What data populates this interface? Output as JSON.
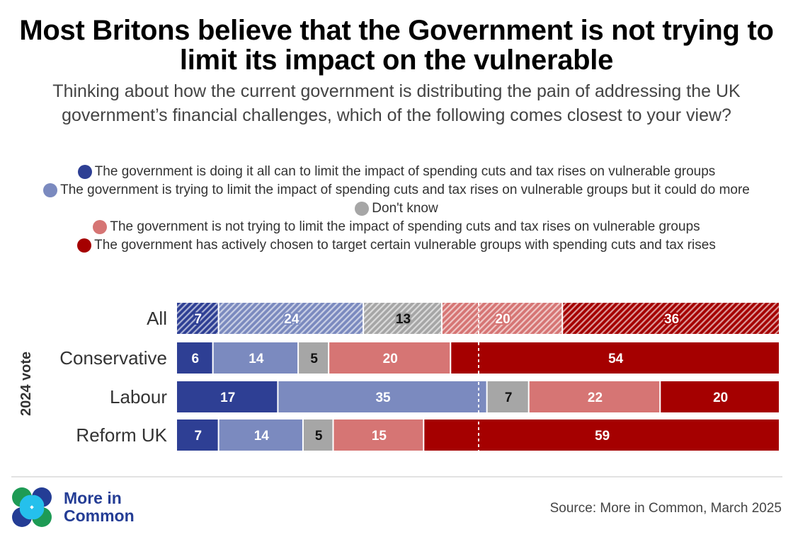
{
  "title": "Most Britons believe that the Government is not trying to limit its impact on the vulnerable",
  "subtitle": "Thinking about how the current government is distributing the pain of addressing the UK government’s financial challenges, which of the following comes closest to your view?",
  "source": "Source: More in Common, March 2025",
  "brand": {
    "line1": "More in",
    "line2": "Common"
  },
  "chart_data": {
    "type": "bar",
    "orientation": "horizontal",
    "stacked": true,
    "xlim": [
      0,
      100
    ],
    "reference_line": 50,
    "ylabel": "2024 vote",
    "categories": [
      "All",
      "Conservative",
      "Labour",
      "Reform UK"
    ],
    "hatched_categories": [
      "All"
    ],
    "series": [
      {
        "name": "The government is doing it all can to limit the impact of spending cuts and tax rises on vulnerable groups",
        "color": "#2e3f94",
        "label_color": "#ffffff",
        "values": [
          7,
          6,
          17,
          7
        ]
      },
      {
        "name": "The government is trying to limit the impact of spending cuts and tax rises on vulnerable groups but it could do more",
        "color": "#7b8abf",
        "label_color": "#ffffff",
        "values": [
          24,
          14,
          35,
          14
        ]
      },
      {
        "name": "Don't know",
        "color": "#a6a6a6",
        "label_color": "#111111",
        "values": [
          13,
          5,
          7,
          5
        ]
      },
      {
        "name": "The government is not trying to limit the impact of spending cuts and tax rises on vulnerable groups",
        "color": "#d67574",
        "label_color": "#ffffff",
        "values": [
          20,
          20,
          22,
          15
        ]
      },
      {
        "name": "The government has actively chosen to target certain vulnerable groups with spending cuts and tax rises",
        "color": "#a50000",
        "label_color": "#ffffff",
        "values": [
          36,
          54,
          20,
          59
        ]
      }
    ]
  }
}
